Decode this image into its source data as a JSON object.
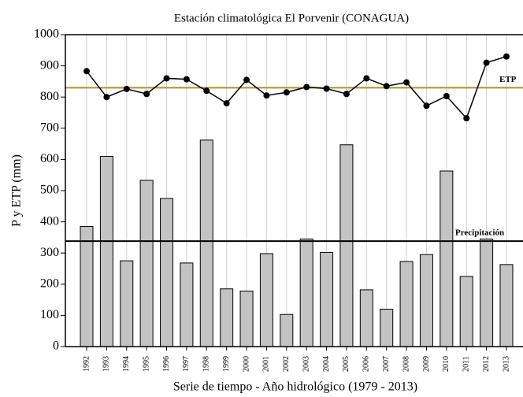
{
  "chart_data": {
    "type": "bar",
    "title": "Estación climatológica El Porvenir (CONAGUA)",
    "x_label": "Serie de tiempo - Año hidrológico (1979 - 2013)",
    "y_label": "P y ETP (mm)",
    "categories": [
      "1992",
      "1993",
      "1994",
      "1995",
      "1996",
      "1997",
      "1998",
      "1999",
      "2000",
      "2001",
      "2002",
      "2003",
      "2004",
      "2005",
      "2006",
      "2007",
      "2008",
      "2009",
      "2010",
      "2011",
      "2012",
      "2013"
    ],
    "series": [
      {
        "type": "bar",
        "color": "#c3c3c3",
        "values": [
          385,
          610,
          275,
          533,
          475,
          268,
          662,
          185,
          178,
          298,
          103,
          345,
          302,
          647,
          182,
          120,
          273,
          295,
          563,
          225,
          345,
          263
        ]
      },
      {
        "type": "line",
        "color": "#000000",
        "values": [
          883,
          800,
          826,
          810,
          860,
          857,
          820,
          780,
          855,
          805,
          815,
          832,
          827,
          810,
          860,
          835,
          847,
          772,
          803,
          732,
          910,
          930
        ]
      }
    ],
    "reference_lines": [
      {
        "label": "ETP",
        "value": 830,
        "color": "#9c9a2e"
      },
      {
        "label": "Precipitación",
        "value": 338,
        "color": "#000000"
      }
    ],
    "ylim": [
      0,
      1000
    ],
    "yticks": [
      0,
      100,
      200,
      300,
      400,
      500,
      600,
      700,
      800,
      900,
      1000
    ],
    "grid": true
  }
}
